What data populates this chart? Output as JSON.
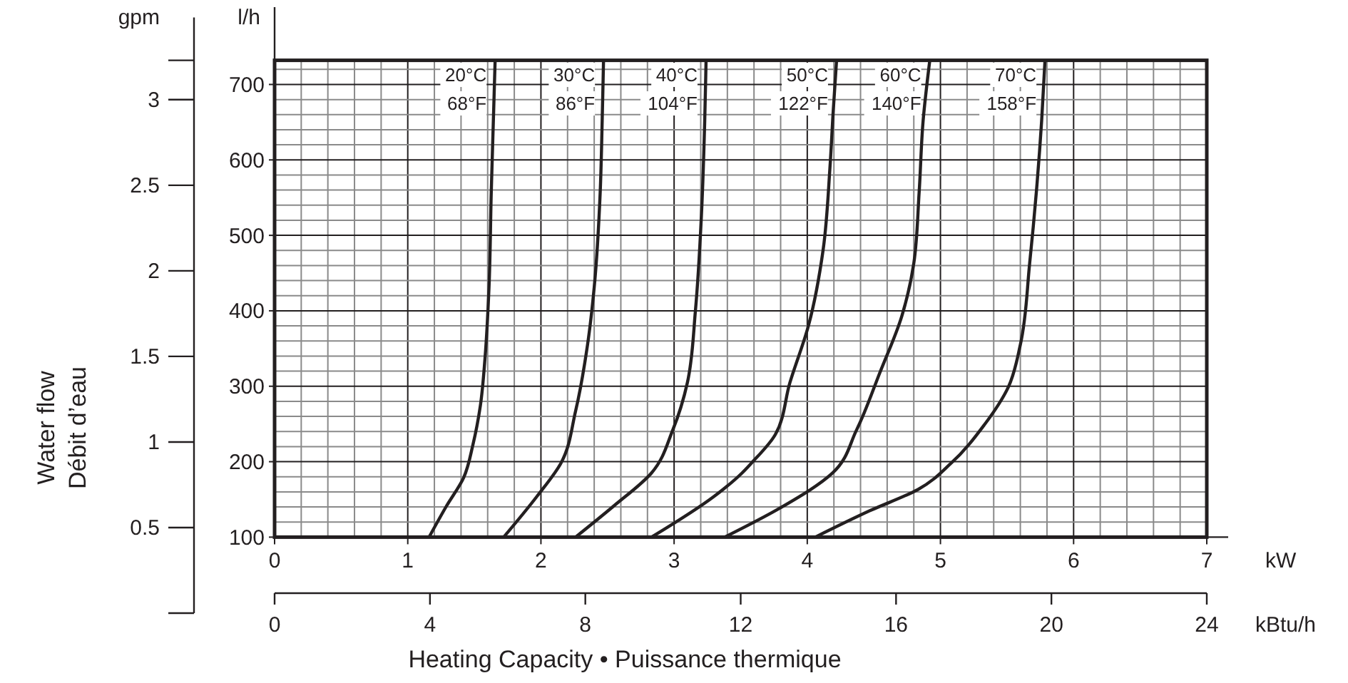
{
  "chart_data": {
    "type": "line",
    "xlabel": "kW",
    "x2label": "kBtu/h",
    "ylabel": "l/h",
    "y2label": "gpm",
    "annotations": [
      "Water flow\nDébit d’eau",
      "Heating Capacity • Puissance thermique"
    ],
    "xlim": [
      0,
      7
    ],
    "xticks": [
      0,
      1,
      2,
      3,
      4,
      5,
      6,
      7
    ],
    "x2lim": [
      0,
      24
    ],
    "x2ticks": [
      0,
      4,
      8,
      12,
      16,
      20,
      24
    ],
    "ylim": [
      100,
      732
    ],
    "yticks": [
      100,
      200,
      300,
      400,
      500,
      600,
      700
    ],
    "y2lim": [
      0,
      3.23
    ],
    "y2ticks": [
      0.5,
      1,
      1.5,
      2,
      2.5,
      3
    ],
    "grid": true,
    "marker": "none",
    "line_style": "solid",
    "series": [
      {
        "name": "20°C\n68°F",
        "color": "#231f20",
        "x": [
          1.16,
          1.29,
          1.42,
          1.49,
          1.545,
          1.58,
          1.61,
          1.627,
          1.645,
          1.656
        ],
        "values": [
          100,
          141,
          179,
          223,
          274,
          337,
          431,
          557,
          665,
          732
        ]
      },
      {
        "name": "30°C\n86°F",
        "color": "#231f20",
        "x": [
          1.72,
          1.97,
          2.15,
          2.26,
          2.35,
          2.4,
          2.445,
          2.46,
          2.47
        ],
        "values": [
          100,
          154,
          198,
          267,
          355,
          431,
          557,
          652,
          732
        ]
      },
      {
        "name": "40°C\n104°F",
        "color": "#231f20",
        "x": [
          2.26,
          2.545,
          2.83,
          2.99,
          3.1,
          3.16,
          3.205,
          3.23,
          3.24
        ],
        "values": [
          100,
          141,
          185,
          242,
          305,
          400,
          526,
          652,
          732
        ]
      },
      {
        "name": "50°C\n122°F",
        "color": "#231f20",
        "x": [
          2.83,
          3.3,
          3.51,
          3.58,
          3.76,
          3.87,
          4.01,
          4.12,
          4.17,
          4.195,
          4.22
        ],
        "values": [
          100,
          154,
          185,
          198,
          236,
          305,
          381,
          482,
          589,
          665,
          732
        ]
      },
      {
        "name": "60°C\n140°F",
        "color": "#231f20",
        "x": [
          3.38,
          3.79,
          4.19,
          4.37,
          4.545,
          4.71,
          4.8,
          4.84,
          4.87,
          4.92
        ],
        "values": [
          100,
          138,
          185,
          242,
          318,
          393,
          463,
          557,
          652,
          732
        ]
      },
      {
        "name": "70°C\n158°F",
        "color": "#231f20",
        "x": [
          4.06,
          4.47,
          4.83,
          5.08,
          5.33,
          5.51,
          5.6,
          5.67,
          5.72,
          5.76,
          5.785
        ],
        "values": [
          100,
          135,
          163,
          198,
          249,
          299,
          355,
          463,
          557,
          652,
          732
        ]
      }
    ]
  }
}
